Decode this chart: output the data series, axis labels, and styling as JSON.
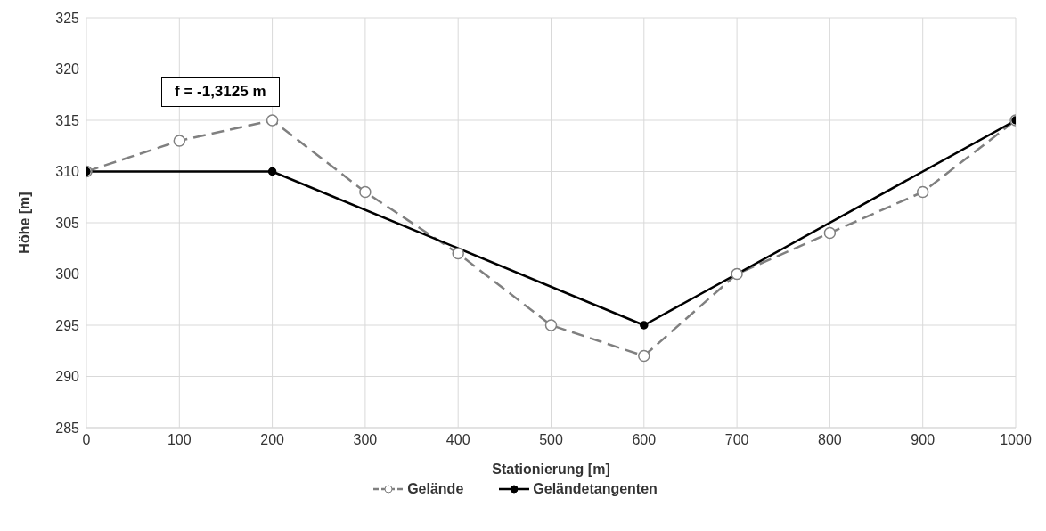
{
  "chart_data": {
    "type": "line",
    "xlabel": "Stationierung [m]",
    "ylabel": "Höhe [m]",
    "annotations": [
      "f = -1,3125 m"
    ],
    "series": [
      {
        "name": "Gelände",
        "color": "#808080",
        "line_style": "dashed",
        "marker": "circle",
        "x": [
          0,
          100,
          200,
          300,
          400,
          500,
          600,
          700,
          800,
          900,
          1000
        ],
        "values": [
          310,
          313,
          315,
          308,
          302,
          295,
          292,
          300,
          304,
          308,
          315
        ]
      },
      {
        "name": "Geländetangenten",
        "color": "#000000",
        "line_style": "solid",
        "marker": "circle",
        "x": [
          0,
          200,
          600,
          1000
        ],
        "values": [
          310,
          310,
          295,
          315
        ]
      }
    ],
    "xlim": [
      0,
      1000
    ],
    "xticks": [
      0,
      100,
      200,
      300,
      400,
      500,
      600,
      700,
      800,
      900,
      1000
    ],
    "ylim": [
      285,
      325
    ],
    "yticks": [
      285,
      290,
      295,
      300,
      305,
      310,
      315,
      320,
      325
    ],
    "grid": true,
    "legend": "bottom"
  }
}
